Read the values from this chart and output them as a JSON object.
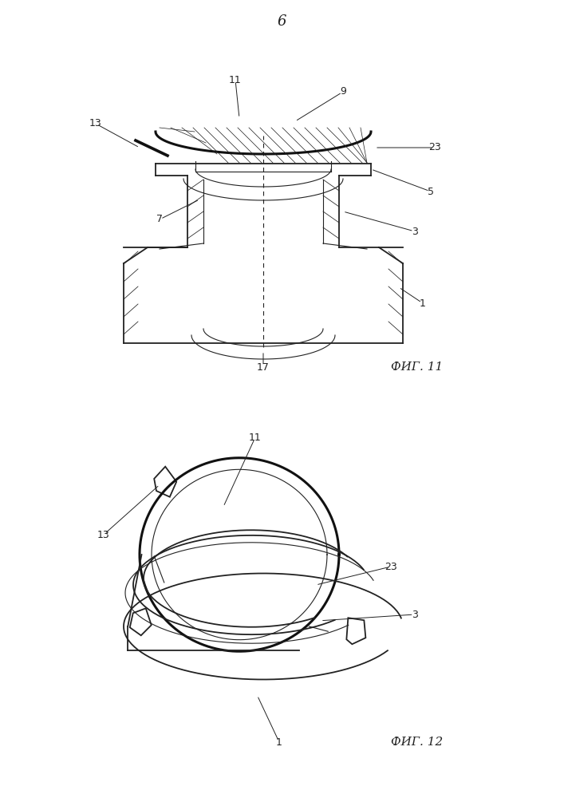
{
  "page_number": "6",
  "fig11_label": "ФИГ. 11",
  "fig12_label": "ФИГ. 12",
  "bg_color": "#ffffff",
  "line_color": "#222222"
}
